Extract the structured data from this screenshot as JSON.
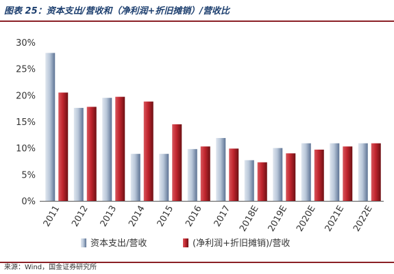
{
  "header": {
    "title": "图表 25：资本支出/营收和（净利润+折旧摊销）/营收比"
  },
  "footer": {
    "source": "来源：Wind，国金证券研究所"
  },
  "colors": {
    "series1": "#b9c7d9",
    "series1_dark": "#5d7394",
    "series2": "#c0252e",
    "series2_dark": "#6e1014",
    "rule": "#8a1f24",
    "title": "#1c3e6e"
  },
  "chart_data": {
    "type": "bar",
    "categories": [
      "2011",
      "2012",
      "2013",
      "2014",
      "2015",
      "2016",
      "2017",
      "2018E",
      "2019E",
      "2020E",
      "2021E",
      "2022E"
    ],
    "series": [
      {
        "name": "资本支出/营收",
        "values": [
          28.0,
          17.6,
          19.5,
          8.9,
          8.9,
          9.8,
          11.9,
          7.7,
          10.0,
          10.9,
          10.9,
          10.9
        ]
      },
      {
        "name": "(净利润+折旧摊销)/营收",
        "values": [
          20.5,
          17.8,
          19.7,
          18.8,
          14.5,
          10.3,
          9.9,
          7.3,
          9.0,
          9.7,
          10.3,
          10.9
        ]
      }
    ],
    "yticks": [
      "0%",
      "5%",
      "10%",
      "15%",
      "20%",
      "25%",
      "30%"
    ],
    "ylim": [
      0,
      30
    ],
    "grid": false,
    "legend": "bottom"
  }
}
